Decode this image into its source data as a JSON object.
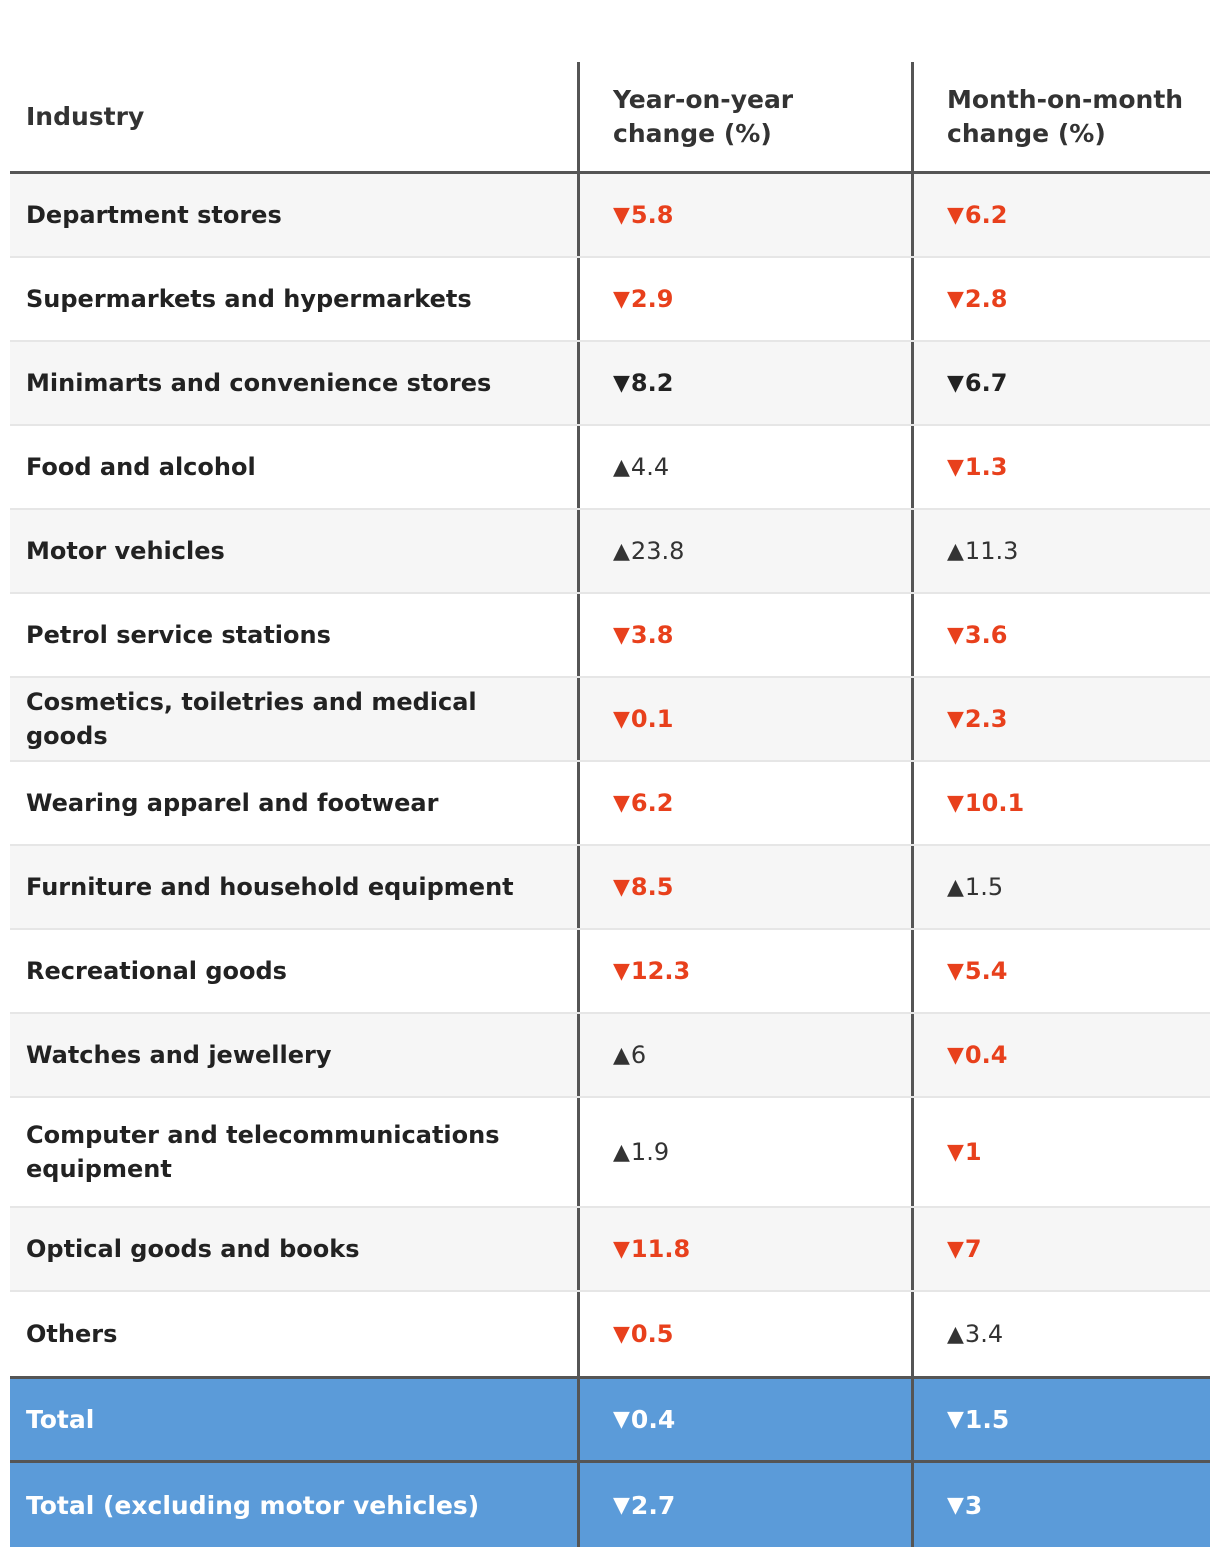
{
  "chart_data": {
    "type": "table",
    "columns": [
      "Industry",
      "Year-on-year change (%)",
      "Month-on-month change (%)"
    ],
    "rows": [
      {
        "industry": "Department stores",
        "yoy": {
          "dir": "down",
          "value": "5.8",
          "color": "#e8401c"
        },
        "mom": {
          "dir": "down",
          "value": "6.2",
          "color": "#e8401c"
        }
      },
      {
        "industry": "Supermarkets and hypermarkets",
        "yoy": {
          "dir": "down",
          "value": "2.9",
          "color": "#e8401c"
        },
        "mom": {
          "dir": "down",
          "value": "2.8",
          "color": "#e8401c"
        }
      },
      {
        "industry": "Minimarts and convenience stores",
        "yoy": {
          "dir": "down",
          "value": "8.2",
          "color": "#222222"
        },
        "mom": {
          "dir": "down",
          "value": "6.7",
          "color": "#222222"
        }
      },
      {
        "industry": "Food and alcohol",
        "yoy": {
          "dir": "up",
          "value": "4.4",
          "color": "#333333"
        },
        "mom": {
          "dir": "down",
          "value": "1.3",
          "color": "#e8401c"
        }
      },
      {
        "industry": "Motor vehicles",
        "yoy": {
          "dir": "up",
          "value": "23.8",
          "color": "#333333"
        },
        "mom": {
          "dir": "up",
          "value": "11.3",
          "color": "#333333"
        }
      },
      {
        "industry": "Petrol service stations",
        "yoy": {
          "dir": "down",
          "value": "3.8",
          "color": "#e8401c"
        },
        "mom": {
          "dir": "down",
          "value": "3.6",
          "color": "#e8401c"
        }
      },
      {
        "industry": "Cosmetics, toiletries and medical goods",
        "yoy": {
          "dir": "down",
          "value": "0.1",
          "color": "#e8401c"
        },
        "mom": {
          "dir": "down",
          "value": "2.3",
          "color": "#e8401c"
        }
      },
      {
        "industry": "Wearing apparel and footwear",
        "yoy": {
          "dir": "down",
          "value": "6.2",
          "color": "#e8401c"
        },
        "mom": {
          "dir": "down",
          "value": "10.1",
          "color": "#e8401c"
        }
      },
      {
        "industry": "Furniture and household equipment",
        "yoy": {
          "dir": "down",
          "value": "8.5",
          "color": "#e8401c"
        },
        "mom": {
          "dir": "up",
          "value": "1.5",
          "color": "#333333"
        }
      },
      {
        "industry": "Recreational goods",
        "yoy": {
          "dir": "down",
          "value": "12.3",
          "color": "#e8401c"
        },
        "mom": {
          "dir": "down",
          "value": "5.4",
          "color": "#e8401c"
        }
      },
      {
        "industry": "Watches and jewellery",
        "yoy": {
          "dir": "up",
          "value": "6",
          "color": "#333333"
        },
        "mom": {
          "dir": "down",
          "value": "0.4",
          "color": "#e8401c"
        }
      },
      {
        "industry": "Computer and telecommunications equipment",
        "yoy": {
          "dir": "up",
          "value": "1.9",
          "color": "#333333"
        },
        "mom": {
          "dir": "down",
          "value": "1",
          "color": "#e8401c"
        }
      },
      {
        "industry": "Optical goods and books",
        "yoy": {
          "dir": "down",
          "value": "11.8",
          "color": "#e8401c"
        },
        "mom": {
          "dir": "down",
          "value": "7",
          "color": "#e8401c"
        }
      },
      {
        "industry": "Others",
        "yoy": {
          "dir": "down",
          "value": "0.5",
          "color": "#e8401c"
        },
        "mom": {
          "dir": "up",
          "value": "3.4",
          "color": "#333333"
        }
      }
    ],
    "totals": [
      {
        "industry": "Total",
        "yoy": {
          "dir": "down",
          "value": "0.4"
        },
        "mom": {
          "dir": "down",
          "value": "1.5"
        }
      },
      {
        "industry": "Total (excluding motor vehicles)",
        "yoy": {
          "dir": "down",
          "value": "2.7"
        },
        "mom": {
          "dir": "down",
          "value": "3"
        }
      }
    ],
    "symbols": {
      "up": "▲",
      "down": "▼"
    },
    "colors": {
      "negative": "#e8401c",
      "neutral": "#333333",
      "total_background": "#5b9bd9",
      "row_shade": "#f6f6f6",
      "divider": "#555555"
    }
  }
}
